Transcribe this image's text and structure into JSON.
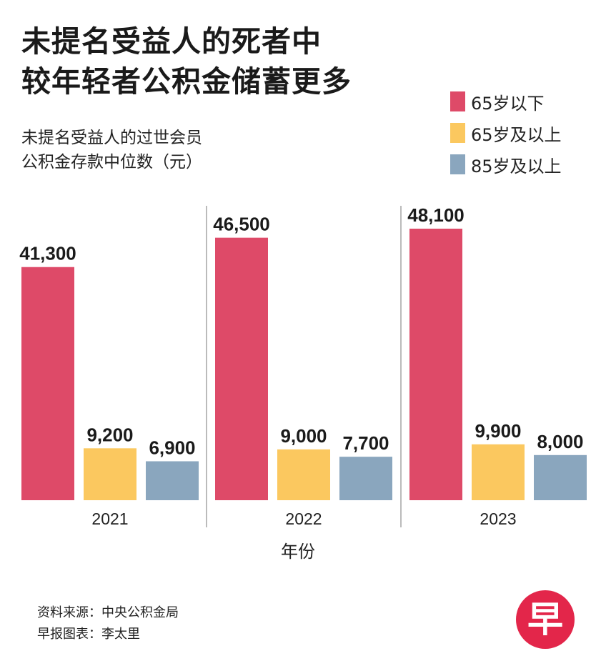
{
  "title_lines": [
    "未提名受益人的死者中",
    "较年轻者公积金储蓄更多"
  ],
  "subtitle_lines": [
    "未提名受益人的过世会员",
    "公积金存款中位数（元）"
  ],
  "source": {
    "line1": "资料来源：中央公积金局",
    "line2": "早报图表：李太里"
  },
  "logo_text": "早",
  "chart_data": {
    "type": "bar",
    "categories": [
      "2021",
      "2022",
      "2023"
    ],
    "series": [
      {
        "name": "65岁以下",
        "color": "#de4a68",
        "values": [
          41300,
          46500,
          48100
        ],
        "labels": [
          "41,300",
          "46,500",
          "48,100"
        ]
      },
      {
        "name": "65岁及以上",
        "color": "#fbc85f",
        "values": [
          9200,
          9000,
          9900
        ],
        "labels": [
          "9,200",
          "9,000",
          "9,900"
        ]
      },
      {
        "name": "85岁及以上",
        "color": "#8aa6be",
        "values": [
          6900,
          7700,
          8000
        ],
        "labels": [
          "6,900",
          "7,700",
          "8,000"
        ]
      }
    ],
    "xlabel": "年份",
    "ylabel": "",
    "ylim": [
      0,
      50000
    ],
    "legend_position": "top-right",
    "grid": false
  }
}
